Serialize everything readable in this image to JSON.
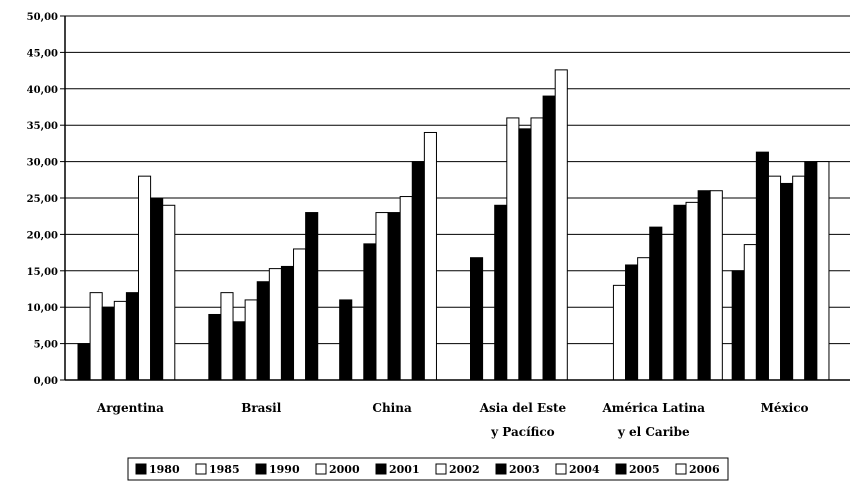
{
  "chart_data": {
    "type": "bar",
    "title": "",
    "xlabel": "",
    "ylabel": "",
    "ylim": [
      0,
      50
    ],
    "yticks": [
      "0,00",
      "5,00",
      "10,00",
      "15,00",
      "20,00",
      "25,00",
      "30,00",
      "35,00",
      "40,00",
      "45,00",
      "50,00"
    ],
    "grid": true,
    "legend_position": "bottom",
    "categories": [
      [
        "Argentina"
      ],
      [
        "Brasil"
      ],
      [
        "China"
      ],
      [
        "Asia del Este",
        "y Pacífico"
      ],
      [
        "América Latina",
        "y el Caribe"
      ],
      [
        "México"
      ]
    ],
    "series": [
      {
        "name": "1980",
        "fill": "#000000",
        "values": [
          5.0,
          9.0,
          11.0,
          16.8,
          null,
          15.0
        ]
      },
      {
        "name": "1985",
        "fill": "#ffffff",
        "values": [
          12.0,
          12.0,
          10.0,
          null,
          13.0,
          18.6
        ]
      },
      {
        "name": "1990",
        "fill": "#000000",
        "values": [
          10.0,
          8.0,
          18.7,
          24.0,
          15.8,
          31.3
        ]
      },
      {
        "name": "2000",
        "fill": "#ffffff",
        "values": [
          10.8,
          11.0,
          23.0,
          36.0,
          16.8,
          28.0
        ]
      },
      {
        "name": "2001",
        "fill": "#000000",
        "values": [
          12.0,
          13.5,
          23.0,
          34.5,
          21.0,
          27.0
        ]
      },
      {
        "name": "2002",
        "fill": "#ffffff",
        "values": [
          28.0,
          15.3,
          25.2,
          36.0,
          20.0,
          28.0
        ]
      },
      {
        "name": "2003",
        "fill": "#000000",
        "values": [
          25.0,
          15.6,
          30.0,
          39.0,
          24.0,
          30.0
        ]
      },
      {
        "name": "2004",
        "fill": "#ffffff",
        "values": [
          24.0,
          18.0,
          34.0,
          42.6,
          24.4,
          30.0
        ]
      },
      {
        "name": "2005",
        "fill": "#000000",
        "values": [
          null,
          23.0,
          null,
          null,
          26.0,
          null
        ]
      },
      {
        "name": "2006",
        "fill": "#ffffff",
        "values": [
          null,
          null,
          null,
          null,
          26.0,
          null
        ]
      }
    ]
  }
}
